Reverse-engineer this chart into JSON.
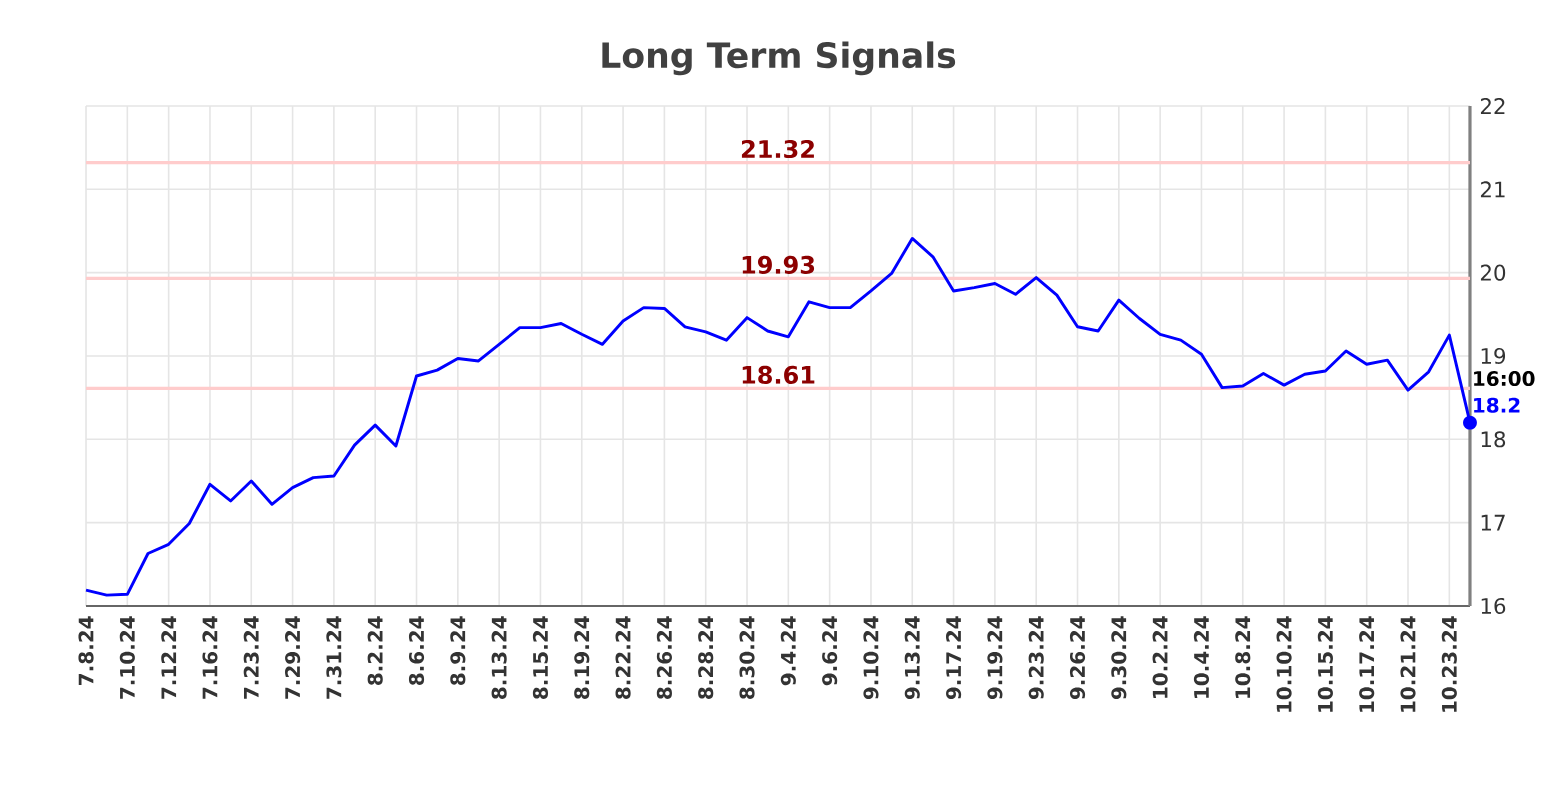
{
  "chart_data": {
    "type": "line",
    "title": "Long Term Signals",
    "categories": [
      "7.8.24",
      null,
      "7.10.24",
      null,
      "7.12.24",
      null,
      "7.16.24",
      null,
      "7.23.24",
      null,
      "7.29.24",
      null,
      "7.31.24",
      null,
      "8.2.24",
      null,
      "8.6.24",
      null,
      "8.9.24",
      null,
      "8.13.24",
      null,
      "8.15.24",
      null,
      "8.19.24",
      null,
      "8.22.24",
      null,
      "8.26.24",
      null,
      "8.28.24",
      null,
      "8.30.24",
      null,
      "9.4.24",
      null,
      "9.6.24",
      null,
      "9.10.24",
      null,
      "9.13.24",
      null,
      "9.17.24",
      null,
      "9.19.24",
      null,
      "9.23.24",
      null,
      "9.26.24",
      null,
      "9.30.24",
      null,
      "10.2.24",
      null,
      "10.4.24",
      null,
      "10.8.24",
      null,
      "10.10.24",
      null,
      "10.15.24",
      null,
      "10.17.24",
      null,
      "10.21.24",
      null,
      "10.23.24",
      null
    ],
    "series": [
      {
        "color": "#0000ff",
        "values": [
          16.19,
          16.13,
          16.14,
          16.63,
          16.74,
          16.99,
          17.46,
          17.26,
          17.5,
          17.22,
          17.42,
          17.54,
          17.56,
          17.93,
          18.17,
          17.92,
          18.76,
          18.83,
          18.97,
          18.94,
          19.14,
          19.34,
          19.34,
          19.39,
          19.26,
          19.14,
          19.42,
          19.58,
          19.57,
          19.35,
          19.29,
          19.19,
          19.46,
          19.3,
          19.23,
          19.65,
          19.58,
          19.58,
          19.78,
          19.99,
          20.41,
          20.19,
          19.78,
          19.82,
          19.87,
          19.74,
          19.94,
          19.73,
          19.35,
          19.3,
          19.67,
          19.45,
          19.26,
          19.19,
          19.02,
          18.62,
          18.64,
          18.79,
          18.65,
          18.78,
          18.82,
          19.06,
          18.9,
          18.95,
          18.59,
          18.81,
          19.25,
          18.2
        ]
      }
    ],
    "ylim": [
      16,
      22
    ],
    "yticks": [
      16,
      17,
      18,
      19,
      20,
      21,
      22
    ],
    "grid": true,
    "marker": "none",
    "line_style": "solid",
    "ref_lines": [
      {
        "axis": "y",
        "value": 21.32,
        "label": "21.32",
        "color": "#ffcccc"
      },
      {
        "axis": "y",
        "value": 19.93,
        "label": "19.93",
        "color": "#ffcccc"
      },
      {
        "axis": "y",
        "value": 18.61,
        "label": "18.61",
        "color": "#ffcccc"
      }
    ],
    "annotations": [
      "16:00",
      "18.2"
    ]
  }
}
